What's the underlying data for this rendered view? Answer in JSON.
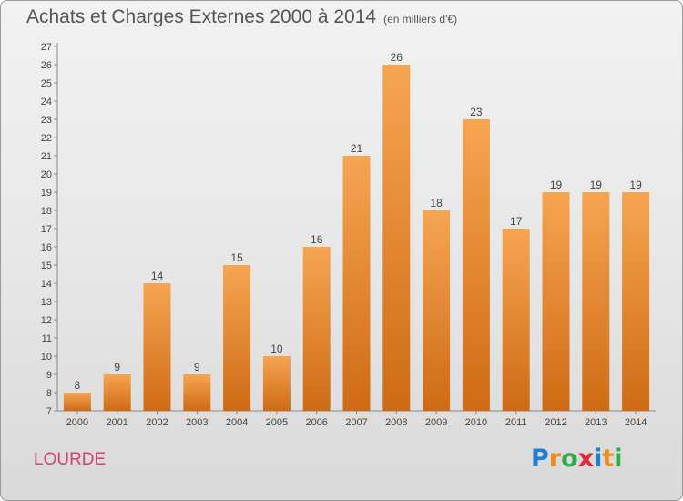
{
  "title": "Achats et Charges Externes 2000 à 2014",
  "subtitle": "(en milliers d'€)",
  "place": "LOURDE",
  "logo": {
    "letters": [
      "P",
      "r",
      "o",
      "x",
      "i",
      "t",
      "i"
    ],
    "colors": [
      "#1f7fd1",
      "#f08a1c",
      "#2eaa4a",
      "#e0283a",
      "#1f7fd1",
      "#f08a1c",
      "#2eaa4a"
    ]
  },
  "colors": {
    "bar_top": "#f6a552",
    "bar_bottom": "#cf6a14",
    "label": "#444444"
  },
  "chart_data": {
    "type": "bar",
    "categories": [
      "2000",
      "2001",
      "2002",
      "2003",
      "2004",
      "2005",
      "2006",
      "2007",
      "2008",
      "2009",
      "2010",
      "2011",
      "2012",
      "2013",
      "2014"
    ],
    "values": [
      8,
      9,
      14,
      9,
      15,
      10,
      16,
      21,
      26,
      18,
      23,
      17,
      19,
      19,
      19
    ],
    "ylim": [
      7,
      27
    ],
    "yticks": [
      7,
      8,
      9,
      10,
      11,
      12,
      13,
      14,
      15,
      16,
      17,
      18,
      19,
      20,
      21,
      22,
      23,
      24,
      25,
      26,
      27
    ],
    "grid": false
  }
}
